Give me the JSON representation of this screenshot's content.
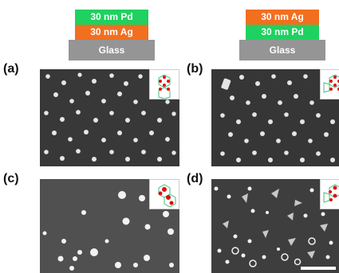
{
  "stacks": {
    "left": {
      "top": "30 nm Pd",
      "middle": "30 nm Ag",
      "substrate": "Glass"
    },
    "right": {
      "top": "30 nm Ag",
      "middle": "30 nm Pd",
      "substrate": "Glass"
    }
  },
  "panels": [
    {
      "label": "(a)"
    },
    {
      "label": "(b)"
    },
    {
      "label": "(c)"
    },
    {
      "label": "(d)"
    }
  ],
  "colors": {
    "pd": "#1fd160",
    "ag": "#f26f1f",
    "glass": "#959595",
    "sem_background": "#3a3a3a",
    "particle": "#e8e8e8",
    "inset_dot": "#e01010",
    "inset_outline": "#3fbf7f"
  },
  "icons": [
    "hexagonal-lattice-inset-icon",
    "scale-bar"
  ]
}
